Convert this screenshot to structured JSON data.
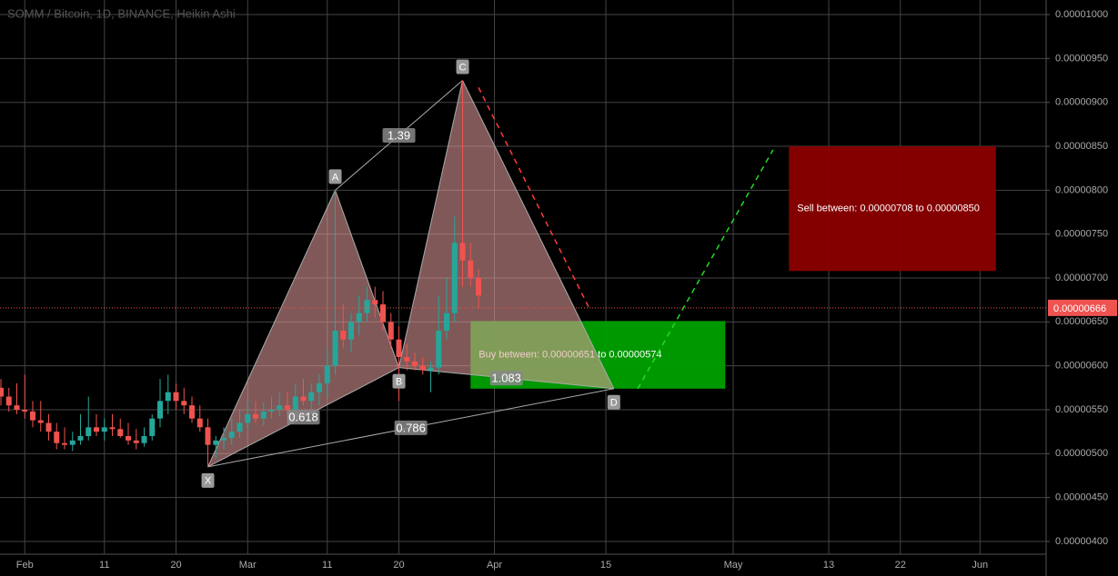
{
  "chart_data": {
    "type": "candlestick",
    "title": "SOMM / Bitcoin, 1D, BINANCE, Heikin Ashi",
    "ylim": [
      3.855e-06,
      1.0166e-05
    ],
    "yticks": [
      {
        "value": 4e-06,
        "label": "0.00000400"
      },
      {
        "value": 4.5e-06,
        "label": "0.00000450"
      },
      {
        "value": 5e-06,
        "label": "0.00000500"
      },
      {
        "value": 5.5e-06,
        "label": "0.00000550"
      },
      {
        "value": 6e-06,
        "label": "0.00000600"
      },
      {
        "value": 6.5e-06,
        "label": "0.00000650"
      },
      {
        "value": 7e-06,
        "label": "0.00000700"
      },
      {
        "value": 7.5e-06,
        "label": "0.00000750"
      },
      {
        "value": 8e-06,
        "label": "0.00000800"
      },
      {
        "value": 8.5e-06,
        "label": "0.00000850"
      },
      {
        "value": 9e-06,
        "label": "0.00000900"
      },
      {
        "value": 9.5e-06,
        "label": "0.00000950"
      },
      {
        "value": 1e-05,
        "label": "0.00001000"
      }
    ],
    "xlim": [
      -0.114,
      131.31
    ],
    "xticks": [
      {
        "value": 3,
        "label": "Feb"
      },
      {
        "value": 13,
        "label": "11"
      },
      {
        "value": 22,
        "label": "20"
      },
      {
        "value": 31,
        "label": "Mar"
      },
      {
        "value": 41,
        "label": "11"
      },
      {
        "value": 50,
        "label": "20"
      },
      {
        "value": 62,
        "label": "Apr"
      },
      {
        "value": 76,
        "label": "15"
      },
      {
        "value": 92,
        "label": "May"
      },
      {
        "value": 104,
        "label": "13"
      },
      {
        "value": 113,
        "label": "22"
      },
      {
        "value": 123,
        "label": "Jun"
      }
    ],
    "grid": true,
    "up_color": "#26a69a",
    "down_color": "#ef5350",
    "candles": [
      [
        5.75e-06,
        5.85e-06,
        5.55e-06,
        5.65e-06
      ],
      [
        5.65e-06,
        5.75e-06,
        5.48e-06,
        5.55e-06
      ],
      [
        5.55e-06,
        5.8e-06,
        5.45e-06,
        5.5e-06
      ],
      [
        5.5e-06,
        5.9e-06,
        5.4e-06,
        5.48e-06
      ],
      [
        5.48e-06,
        5.6e-06,
        5.3e-06,
        5.38e-06
      ],
      [
        5.38e-06,
        5.6e-06,
        5.25e-06,
        5.35e-06
      ],
      [
        5.35e-06,
        5.45e-06,
        5.15e-06,
        5.25e-06
      ],
      [
        5.25e-06,
        5.35e-06,
        5.05e-06,
        5.12e-06
      ],
      [
        5.12e-06,
        5.3e-06,
        5.05e-06,
        5.1e-06
      ],
      [
        5.1e-06,
        5.25e-06,
        5.03e-06,
        5.15e-06
      ],
      [
        5.15e-06,
        5.45e-06,
        5.1e-06,
        5.2e-06
      ],
      [
        5.2e-06,
        5.65e-06,
        5.15e-06,
        5.3e-06
      ],
      [
        5.3e-06,
        5.45e-06,
        5.2e-06,
        5.25e-06
      ],
      [
        5.25e-06,
        5.4e-06,
        5.15e-06,
        5.3e-06
      ],
      [
        5.3e-06,
        5.45e-06,
        5.2e-06,
        5.28e-06
      ],
      [
        5.28e-06,
        5.4e-06,
        5.18e-06,
        5.2e-06
      ],
      [
        5.2e-06,
        5.35e-06,
        5.1e-06,
        5.15e-06
      ],
      [
        5.15e-06,
        5.28e-06,
        5.05e-06,
        5.12e-06
      ],
      [
        5.12e-06,
        5.3e-06,
        5.08e-06,
        5.2e-06
      ],
      [
        5.2e-06,
        5.45e-06,
        5.15e-06,
        5.4e-06
      ],
      [
        5.4e-06,
        5.85e-06,
        5.3e-06,
        5.6e-06
      ],
      [
        5.6e-06,
        5.9e-06,
        5.45e-06,
        5.7e-06
      ],
      [
        5.7e-06,
        5.8e-06,
        5.5e-06,
        5.6e-06
      ],
      [
        5.6e-06,
        5.75e-06,
        5.45e-06,
        5.55e-06
      ],
      [
        5.55e-06,
        5.65e-06,
        5.35e-06,
        5.4e-06
      ],
      [
        5.4e-06,
        5.55e-06,
        5.25e-06,
        5.3e-06
      ],
      [
        5.3e-06,
        5.4e-06,
        4.85e-06,
        5.1e-06
      ],
      [
        5.1e-06,
        5.2e-06,
        4.95e-06,
        5.15e-06
      ],
      [
        5.15e-06,
        5.3e-06,
        5.05e-06,
        5.18e-06
      ],
      [
        5.18e-06,
        5.4e-06,
        5.1e-06,
        5.25e-06
      ],
      [
        5.25e-06,
        5.5e-06,
        5.18e-06,
        5.35e-06
      ],
      [
        5.35e-06,
        5.6e-06,
        5.28e-06,
        5.45e-06
      ],
      [
        5.45e-06,
        5.6e-06,
        5.35e-06,
        5.4e-06
      ],
      [
        5.4e-06,
        5.58e-06,
        5.32e-06,
        5.48e-06
      ],
      [
        5.48e-06,
        5.65e-06,
        5.4e-06,
        5.5e-06
      ],
      [
        5.5e-06,
        5.7e-06,
        5.42e-06,
        5.55e-06
      ],
      [
        5.55e-06,
        5.7e-06,
        5.45e-06,
        5.5e-06
      ],
      [
        5.5e-06,
        5.8e-06,
        5.45e-06,
        5.65e-06
      ],
      [
        5.65e-06,
        5.85e-06,
        5.55e-06,
        5.6e-06
      ],
      [
        5.6e-06,
        5.8e-06,
        5.48e-06,
        5.7e-06
      ],
      [
        5.7e-06,
        5.9e-06,
        5.55e-06,
        5.8e-06
      ],
      [
        5.8e-06,
        6.2e-06,
        5.65e-06,
        6e-06
      ],
      [
        6e-06,
        8e-06,
        5.9e-06,
        6.4e-06
      ],
      [
        6.4e-06,
        6.7e-06,
        6.2e-06,
        6.3e-06
      ],
      [
        6.3e-06,
        6.6e-06,
        6.15e-06,
        6.5e-06
      ],
      [
        6.5e-06,
        6.8e-06,
        6.35e-06,
        6.6e-06
      ],
      [
        6.6e-06,
        6.9e-06,
        6.5e-06,
        6.75e-06
      ],
      [
        6.75e-06,
        6.9e-06,
        6.55e-06,
        6.7e-06
      ],
      [
        6.7e-06,
        6.85e-06,
        6.4e-06,
        6.5e-06
      ],
      [
        6.5e-06,
        6.6e-06,
        6.2e-06,
        6.3e-06
      ],
      [
        6.3e-06,
        6.45e-06,
        5.6e-06,
        6.1e-06
      ],
      [
        6.1e-06,
        6.25e-06,
        5.95e-06,
        6.05e-06
      ],
      [
        6.05e-06,
        6.15e-06,
        5.95e-06,
        6e-06
      ],
      [
        6e-06,
        6.1e-06,
        5.9e-06,
        5.95e-06
      ],
      [
        5.95e-06,
        6.05e-06,
        5.7e-06,
        5.98e-06
      ],
      [
        5.98e-06,
        6.8e-06,
        5.9e-06,
        6.4e-06
      ],
      [
        6.4e-06,
        7e-06,
        6.3e-06,
        6.6e-06
      ],
      [
        6.6e-06,
        7.7e-06,
        6.5e-06,
        7.4e-06
      ],
      [
        7.4e-06,
        9.25e-06,
        6.9e-06,
        7.2e-06
      ],
      [
        7.2e-06,
        7.4e-06,
        6.9e-06,
        7e-06
      ],
      [
        7e-06,
        7.1e-06,
        6.65e-06,
        6.8e-06
      ]
    ],
    "last_price": {
      "value": 6.66e-06,
      "label": "0.00000666"
    },
    "pattern": [
      {
        "label": "X",
        "x": 26,
        "y": 4.85e-06
      },
      {
        "label": "A",
        "x": 42,
        "y": 8e-06
      },
      {
        "label": "B",
        "x": 50,
        "y": 5.98e-06
      },
      {
        "label": "C",
        "x": 58,
        "y": 9.25e-06
      },
      {
        "label": "D",
        "x": 77,
        "y": 5.74e-06
      }
    ],
    "ratios": [
      "0.618",
      "1.39",
      "0.786",
      "1.083"
    ],
    "zones": [
      {
        "text": "Buy between: 0.00000651 to 0.00000574",
        "top": 6.51e-06,
        "bottom": 5.74e-06,
        "x": [
          59,
          91
        ],
        "color": "#00a000"
      },
      {
        "text": "Sell between: 0.00000708 to 0.00000850",
        "top": 8.5e-06,
        "bottom": 7.08e-06,
        "x": [
          99,
          125
        ],
        "color": "#8b0000"
      }
    ],
    "arrows": [
      {
        "color": "#ff3b3b",
        "x": [
          60,
          74
        ],
        "y": [
          9.17e-06,
          6.64e-06
        ]
      },
      {
        "color": "#22dd22",
        "x": [
          80,
          97
        ],
        "y": [
          5.74e-06,
          8.46e-06
        ]
      }
    ]
  }
}
